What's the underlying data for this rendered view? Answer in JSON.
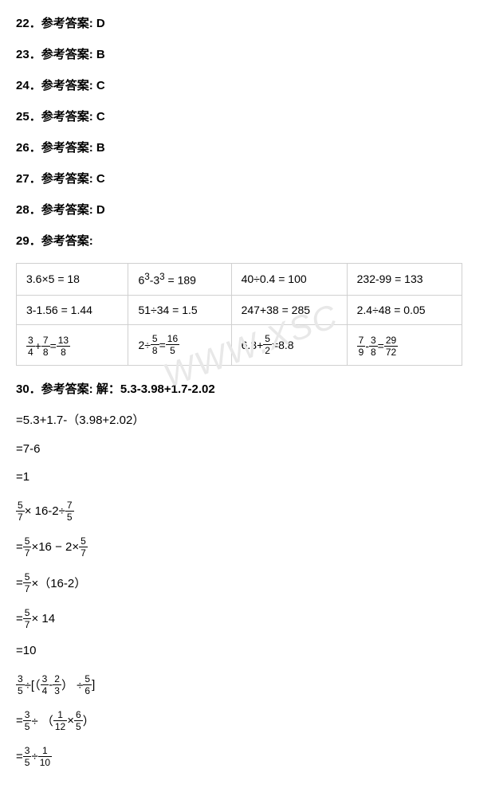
{
  "watermark": "WWW.XSC",
  "answers": [
    {
      "num": "22",
      "label": "参考答案:",
      "val": "D"
    },
    {
      "num": "23",
      "label": "参考答案:",
      "val": "B"
    },
    {
      "num": "24",
      "label": "参考答案:",
      "val": "C"
    },
    {
      "num": "25",
      "label": "参考答案:",
      "val": "C"
    },
    {
      "num": "26",
      "label": "参考答案:",
      "val": "B"
    },
    {
      "num": "27",
      "label": "参考答案:",
      "val": "C"
    },
    {
      "num": "28",
      "label": "参考答案:",
      "val": "D"
    }
  ],
  "q29": {
    "num": "29",
    "label": "参考答案:"
  },
  "table": {
    "background_color": "#ffffff",
    "border_color": "#d0d0d0",
    "rows": [
      [
        {
          "plain": "3.6×5 = 18"
        },
        {
          "html": "6<sup>3</sup>-3<sup>3</sup> = 189"
        },
        {
          "plain": "40÷0.4 = 100"
        },
        {
          "plain": "232-99 = 133"
        }
      ],
      [
        {
          "plain": "3-1.56 = 1.44"
        },
        {
          "plain": "51÷34 = 1.5"
        },
        {
          "plain": "247+38 = 285"
        },
        {
          "plain": "2.4÷48 = 0.05"
        }
      ],
      [
        {
          "frac_expr": [
            {
              "f": [
                3,
                4
              ]
            },
            {
              "t": "+"
            },
            {
              "f": [
                7,
                8
              ]
            },
            {
              "t": "="
            },
            {
              "f": [
                13,
                8
              ]
            }
          ]
        },
        {
          "frac_expr": [
            {
              "t": "2÷"
            },
            {
              "f": [
                5,
                8
              ]
            },
            {
              "t": "="
            },
            {
              "f": [
                16,
                5
              ]
            }
          ]
        },
        {
          "frac_expr": [
            {
              "t": "6.3+"
            },
            {
              "f": [
                5,
                2
              ]
            },
            {
              "t": "=8.8"
            }
          ]
        },
        {
          "frac_expr": [
            {
              "f": [
                7,
                9
              ]
            },
            {
              "t": "-"
            },
            {
              "f": [
                3,
                8
              ]
            },
            {
              "t": "="
            },
            {
              "f": [
                29,
                72
              ]
            }
          ]
        }
      ]
    ]
  },
  "q30": {
    "header": "30．参考答案: 解：5.3-3.98+1.7-2.02",
    "steps": [
      {
        "plain": "=5.3+1.7-（3.98+2.02）"
      },
      {
        "plain": "=7-6"
      },
      {
        "plain": "=1"
      },
      {
        "frac_expr": [
          {
            "f": [
              5,
              7
            ]
          },
          {
            "t": "× 16-2÷"
          },
          {
            "f": [
              7,
              5
            ]
          }
        ]
      },
      {
        "frac_expr": [
          {
            "t": "="
          },
          {
            "f": [
              5,
              7
            ]
          },
          {
            "t": "×16 − 2×"
          },
          {
            "f": [
              5,
              7
            ]
          }
        ]
      },
      {
        "frac_expr": [
          {
            "t": "="
          },
          {
            "f": [
              5,
              7
            ]
          },
          {
            "t": "×（16-2）"
          }
        ]
      },
      {
        "frac_expr": [
          {
            "t": "="
          },
          {
            "f": [
              5,
              7
            ]
          },
          {
            "t": "× 14"
          }
        ]
      },
      {
        "plain": "=10"
      },
      {
        "frac_expr": [
          {
            "f": [
              3,
              5
            ]
          },
          {
            "t": "÷[（"
          },
          {
            "f": [
              3,
              4
            ]
          },
          {
            "t": "-"
          },
          {
            "f": [
              2,
              3
            ]
          },
          {
            "t": "） ÷"
          },
          {
            "f": [
              5,
              6
            ]
          },
          {
            "t": "]"
          }
        ]
      },
      {
        "frac_expr": [
          {
            "t": "="
          },
          {
            "f": [
              3,
              5
            ]
          },
          {
            "t": "÷ （"
          },
          {
            "f": [
              1,
              12
            ]
          },
          {
            "t": "×"
          },
          {
            "f": [
              6,
              5
            ]
          },
          {
            "t": "）"
          }
        ]
      },
      {
        "frac_expr": [
          {
            "t": "="
          },
          {
            "f": [
              3,
              5
            ]
          },
          {
            "t": "÷ "
          },
          {
            "f": [
              1,
              10
            ]
          }
        ]
      }
    ]
  }
}
